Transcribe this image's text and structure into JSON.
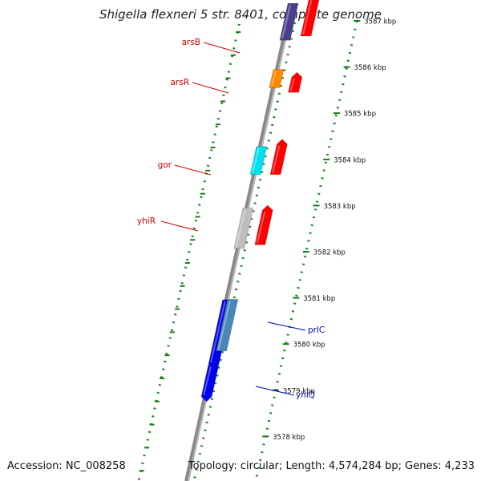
{
  "title": "Shigella flexneri 5 str. 8401, complete genome",
  "footer": {
    "accession": "Accession: NC_008258",
    "topology": "Topology: circular; Length: 4,574,284 bp; Genes: 4,233"
  },
  "colors": {
    "backbone": "#888888",
    "dots": "#1a8a1a",
    "ticks": "#1a7a1a",
    "label_red": "#cc0000",
    "label_blue": "#0000bb"
  },
  "ruler": {
    "unit": "kbp",
    "ticks": [
      {
        "label": "3587 kbp",
        "kbp": 3587
      },
      {
        "label": "3586 kbp",
        "kbp": 3586
      },
      {
        "label": "3585 kbp",
        "kbp": 3585
      },
      {
        "label": "3584 kbp",
        "kbp": 3584
      },
      {
        "label": "3583 kbp",
        "kbp": 3583
      },
      {
        "label": "3582 kbp",
        "kbp": 3582
      },
      {
        "label": "3581 kbp",
        "kbp": 3581
      },
      {
        "label": "3580 kbp",
        "kbp": 3580
      },
      {
        "label": "3579 kbp",
        "kbp": 3579
      },
      {
        "label": "3578 kbp",
        "kbp": 3578
      }
    ]
  },
  "features": [
    {
      "label": "arsB",
      "side": "left",
      "color": "#4a3f8c",
      "start_kbp": 3586.63,
      "end_kbp": 3587.35
    },
    {
      "label": "arsR",
      "side": "left",
      "color": "#ff8800",
      "start_kbp": 3585.55,
      "end_kbp": 3585.95
    },
    {
      "label": "gor",
      "side": "left",
      "color": "#00e0ee",
      "start_kbp": 3583.77,
      "end_kbp": 3584.28
    },
    {
      "label": "yhiR",
      "side": "left",
      "color": "#bdbdbd",
      "start_kbp": 3582.17,
      "end_kbp": 3582.95
    },
    {
      "label": "prlC",
      "side": "right",
      "color": "#4a87b8",
      "start_kbp": 3579.92,
      "end_kbp": 3580.97
    },
    {
      "label": "yhiQ",
      "side": "right",
      "color": "#0000ee",
      "start_kbp": 3579.05,
      "end_kbp": 3579.25
    }
  ],
  "tracks": [
    {
      "name": "outer-left-track",
      "color": "#4a3f8c",
      "start_kbp": 3586.58,
      "end_kbp": 3587.38
    },
    {
      "name": "outer-left-track",
      "color": "#ff8800",
      "start_kbp": 3585.55,
      "end_kbp": 3585.95
    },
    {
      "name": "outer-left-track",
      "color": "#00e0ee",
      "start_kbp": 3583.67,
      "end_kbp": 3584.28
    },
    {
      "name": "outer-left-track",
      "color": "#bdbdbd",
      "start_kbp": 3582.07,
      "end_kbp": 3582.95
    },
    {
      "name": "outer-left-track",
      "color": "#0000ee",
      "start_kbp": 3579.57,
      "end_kbp": 3580.96
    },
    {
      "name": "outer-left-track",
      "color": "#0000ee",
      "start_kbp": 3578.86,
      "end_kbp": 3579.55
    },
    {
      "name": "inner-left-track",
      "color": "#ff0000",
      "start_kbp": 3586.67,
      "end_kbp": 3587.48
    },
    {
      "name": "inner-left-track",
      "color": "#ff0000",
      "start_kbp": 3585.45,
      "end_kbp": 3585.78
    },
    {
      "name": "inner-left-track",
      "color": "#ff0000",
      "start_kbp": 3583.67,
      "end_kbp": 3584.33
    },
    {
      "name": "inner-left-track",
      "color": "#ff0000",
      "start_kbp": 3582.15,
      "end_kbp": 3582.9
    },
    {
      "name": "inner-right-track",
      "color": "#4a87b8",
      "start_kbp": 3579.85,
      "end_kbp": 3580.97
    }
  ]
}
